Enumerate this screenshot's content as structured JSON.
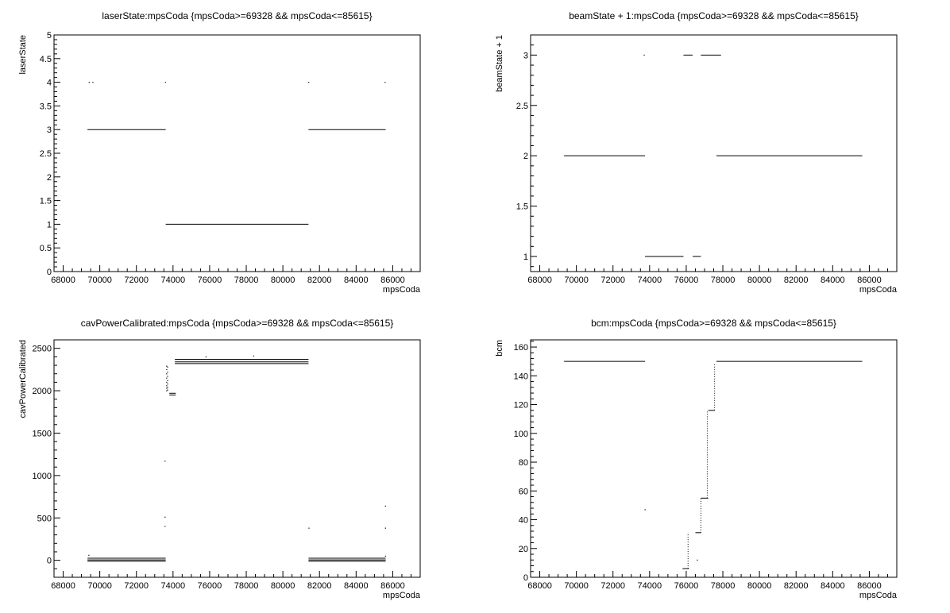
{
  "chart_data": [
    {
      "type": "scatter",
      "title": "laserState:mpsCoda {mpsCoda>=69328 && mpsCoda<=85615}",
      "xlabel": "mpsCoda",
      "ylabel": "laserState",
      "xlim": [
        67500,
        87500
      ],
      "ylim": [
        0,
        5
      ],
      "xticks": [
        "68000",
        "70000",
        "72000",
        "74000",
        "76000",
        "78000",
        "80000",
        "82000",
        "84000",
        "86000"
      ],
      "yticks": [
        "0",
        "0.5",
        "1",
        "1.5",
        "2",
        "2.5",
        "3",
        "3.5",
        "4",
        "4.5",
        "5"
      ],
      "segments": [
        {
          "x": [
            69328,
            73600
          ],
          "y": 3
        },
        {
          "x": [
            73600,
            81400
          ],
          "y": 1
        },
        {
          "x": [
            81400,
            85615
          ],
          "y": 3
        }
      ],
      "points": [
        {
          "x": 69420,
          "y": 4
        },
        {
          "x": 69620,
          "y": 4
        },
        {
          "x": 73580,
          "y": 4
        },
        {
          "x": 81410,
          "y": 4
        },
        {
          "x": 85580,
          "y": 4
        }
      ]
    },
    {
      "type": "scatter",
      "title": "beamState + 1:mpsCoda {mpsCoda>=69328 && mpsCoda<=85615}",
      "xlabel": "mpsCoda",
      "ylabel": "beamState + 1",
      "xlim": [
        67500,
        87500
      ],
      "ylim": [
        0.85,
        3.2
      ],
      "xticks": [
        "68000",
        "70000",
        "72000",
        "74000",
        "76000",
        "78000",
        "80000",
        "82000",
        "84000",
        "86000"
      ],
      "yticks": [
        "1",
        "1.5",
        "2",
        "2.5",
        "3"
      ],
      "segments": [
        {
          "x": [
            69328,
            73750
          ],
          "y": 2
        },
        {
          "x": [
            73750,
            75850
          ],
          "y": 1
        },
        {
          "x": [
            75850,
            76350
          ],
          "y": 3
        },
        {
          "x": [
            76350,
            76800
          ],
          "y": 1
        },
        {
          "x": [
            76800,
            77900
          ],
          "y": 3
        },
        {
          "x": [
            77650,
            85615
          ],
          "y": 2
        }
      ],
      "points": [
        {
          "x": 73700,
          "y": 3
        }
      ]
    },
    {
      "type": "scatter",
      "title": "cavPowerCalibrated:mpsCoda {mpsCoda>=69328 && mpsCoda<=85615}",
      "xlabel": "mpsCoda",
      "ylabel": "cavPowerCalibrated",
      "xlim": [
        67500,
        87500
      ],
      "ylim": [
        -200,
        2600
      ],
      "xticks": [
        "68000",
        "70000",
        "72000",
        "74000",
        "76000",
        "78000",
        "80000",
        "82000",
        "84000",
        "86000"
      ],
      "yticks": [
        "0",
        "500",
        "1000",
        "1500",
        "2000",
        "2500"
      ],
      "segments": [
        {
          "x": [
            69328,
            73600
          ],
          "y": 25
        },
        {
          "x": [
            69328,
            73600
          ],
          "y": 5
        },
        {
          "x": [
            69328,
            73600
          ],
          "y": -10
        },
        {
          "x": [
            74100,
            81400
          ],
          "y": 2370
        },
        {
          "x": [
            74100,
            81400
          ],
          "y": 2340
        },
        {
          "x": [
            74100,
            81400
          ],
          "y": 2320
        },
        {
          "x": [
            73800,
            74150
          ],
          "y": 1950
        },
        {
          "x": [
            73800,
            74150
          ],
          "y": 1970
        },
        {
          "x": [
            81400,
            85615
          ],
          "y": 25
        },
        {
          "x": [
            81400,
            85615
          ],
          "y": 5
        },
        {
          "x": [
            81400,
            85615
          ],
          "y": -10
        }
      ],
      "points": [
        {
          "x": 69400,
          "y": 60
        },
        {
          "x": 73560,
          "y": 1170
        },
        {
          "x": 73560,
          "y": 510
        },
        {
          "x": 73560,
          "y": 400
        },
        {
          "x": 73650,
          "y": 2290
        },
        {
          "x": 73650,
          "y": 2250
        },
        {
          "x": 73650,
          "y": 2200
        },
        {
          "x": 73650,
          "y": 2150
        },
        {
          "x": 73650,
          "y": 2100
        },
        {
          "x": 73650,
          "y": 2060
        },
        {
          "x": 73650,
          "y": 2030
        },
        {
          "x": 73650,
          "y": 2000
        },
        {
          "x": 73700,
          "y": 2280
        },
        {
          "x": 73700,
          "y": 2220
        },
        {
          "x": 73700,
          "y": 2170
        },
        {
          "x": 73700,
          "y": 2120
        },
        {
          "x": 73700,
          "y": 2080
        },
        {
          "x": 73700,
          "y": 2040
        },
        {
          "x": 73700,
          "y": 2010
        },
        {
          "x": 75800,
          "y": 2400
        },
        {
          "x": 78400,
          "y": 2410
        },
        {
          "x": 81420,
          "y": 380
        },
        {
          "x": 85600,
          "y": 640
        },
        {
          "x": 85600,
          "y": 380
        },
        {
          "x": 85600,
          "y": 50
        }
      ]
    },
    {
      "type": "scatter",
      "title": "bcm:mpsCoda {mpsCoda>=69328 && mpsCoda<=85615}",
      "xlabel": "mpsCoda",
      "ylabel": "bcm",
      "xlim": [
        67500,
        87500
      ],
      "ylim": [
        0,
        165
      ],
      "xticks": [
        "68000",
        "70000",
        "72000",
        "74000",
        "76000",
        "78000",
        "80000",
        "82000",
        "84000",
        "86000"
      ],
      "yticks": [
        "0",
        "20",
        "40",
        "60",
        "80",
        "100",
        "120",
        "140",
        "160"
      ],
      "segments": [
        {
          "x": [
            69328,
            73750
          ],
          "y": 150
        },
        {
          "x": [
            75800,
            76150
          ],
          "y": 6
        },
        {
          "x": [
            76500,
            76800
          ],
          "y": 31
        },
        {
          "x": [
            76800,
            77200
          ],
          "y": 55
        },
        {
          "x": [
            77200,
            77550
          ],
          "y": 116
        },
        {
          "x": [
            77650,
            85615
          ],
          "y": 150
        }
      ],
      "steps": [
        {
          "x": 76100,
          "y": [
            6,
            31
          ]
        },
        {
          "x": 76800,
          "y": [
            31,
            55
          ]
        },
        {
          "x": 77150,
          "y": [
            55,
            116
          ]
        },
        {
          "x": 77550,
          "y": [
            116,
            149
          ]
        }
      ],
      "points": [
        {
          "x": 73750,
          "y": 47
        },
        {
          "x": 76600,
          "y": 12
        }
      ]
    }
  ]
}
